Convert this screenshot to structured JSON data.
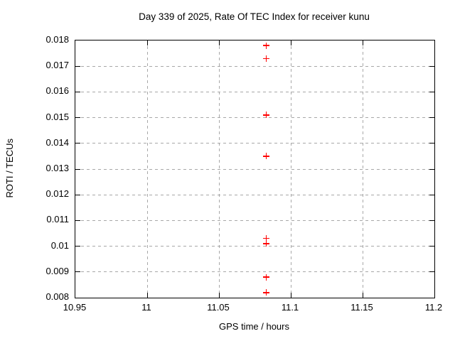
{
  "chart_data": {
    "type": "scatter",
    "title": "Day 339 of 2025, Rate Of TEC Index for receiver kunu",
    "xlabel": "GPS time / hours",
    "ylabel": "ROTI / TECUs",
    "xlim": [
      10.95,
      11.2
    ],
    "ylim": [
      0.008,
      0.018
    ],
    "grid": true,
    "legend": "none",
    "marker": "plus",
    "colors": {
      "marker": "#ff0000",
      "grid": "#a8a8a8",
      "axis": "#000000",
      "background": "#ffffff"
    },
    "x_ticks": [
      {
        "value": 10.95,
        "label": "10.95"
      },
      {
        "value": 11.0,
        "label": "11"
      },
      {
        "value": 11.05,
        "label": "11.05"
      },
      {
        "value": 11.1,
        "label": "11.1"
      },
      {
        "value": 11.15,
        "label": "11.15"
      },
      {
        "value": 11.2,
        "label": "11.2"
      }
    ],
    "y_ticks": [
      {
        "value": 0.008,
        "label": "0.008"
      },
      {
        "value": 0.009,
        "label": "0.009"
      },
      {
        "value": 0.01,
        "label": "0.01"
      },
      {
        "value": 0.011,
        "label": "0.011"
      },
      {
        "value": 0.012,
        "label": "0.012"
      },
      {
        "value": 0.013,
        "label": "0.013"
      },
      {
        "value": 0.014,
        "label": "0.014"
      },
      {
        "value": 0.015,
        "label": "0.015"
      },
      {
        "value": 0.016,
        "label": "0.016"
      },
      {
        "value": 0.017,
        "label": "0.017"
      },
      {
        "value": 0.018,
        "label": "0.018"
      }
    ],
    "series": [
      {
        "name": "ROTI",
        "x": [
          11.083,
          11.083,
          11.083,
          11.083,
          11.083,
          11.083,
          11.083,
          11.083
        ],
        "y": [
          0.0178,
          0.0173,
          0.0151,
          0.0135,
          0.0103,
          0.0101,
          0.0088,
          0.0082
        ]
      }
    ]
  }
}
